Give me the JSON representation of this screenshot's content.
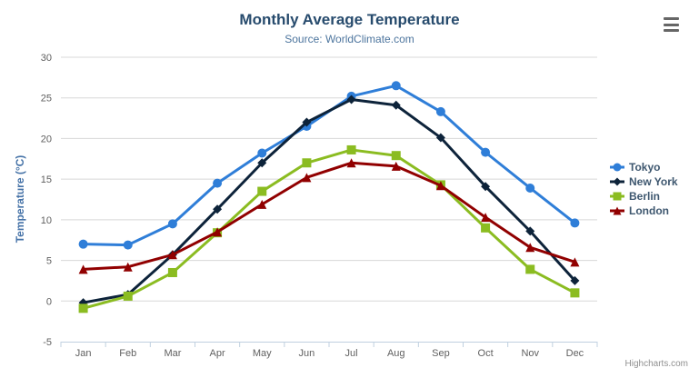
{
  "header": {
    "title": "Monthly Average Temperature",
    "subtitle": "Source: WorldClimate.com"
  },
  "credits": {
    "label": "Highcharts.com"
  },
  "palette": {
    "title_color": "#274b6d",
    "subtitle_color": "#4d759e",
    "yaxis_title_color": "#4572a7",
    "axis_label_color": "#606060",
    "grid_color": "#d8d8d8",
    "axis_line_color": "#c0d0e0",
    "legend_text_color": "#3e576f",
    "credits_color": "#909090",
    "hamburger_color": "#666666"
  },
  "chart_data": {
    "type": "line",
    "title": "Monthly Average Temperature",
    "subtitle": "Source: WorldClimate.com",
    "xlabel": "",
    "ylabel": "Temperature (°C)",
    "ylim": [
      -5,
      30
    ],
    "yticks": [
      -5,
      0,
      5,
      10,
      15,
      20,
      25,
      30
    ],
    "grid": true,
    "legend_position": "right",
    "categories": [
      "Jan",
      "Feb",
      "Mar",
      "Apr",
      "May",
      "Jun",
      "Jul",
      "Aug",
      "Sep",
      "Oct",
      "Nov",
      "Dec"
    ],
    "series": [
      {
        "name": "Tokyo",
        "color": "#2f7ed8",
        "marker": "circle",
        "values": [
          7.0,
          6.9,
          9.5,
          14.5,
          18.2,
          21.5,
          25.2,
          26.5,
          23.3,
          18.3,
          13.9,
          9.6
        ]
      },
      {
        "name": "New York",
        "color": "#0d233a",
        "marker": "diamond",
        "values": [
          -0.2,
          0.8,
          5.7,
          11.3,
          17.0,
          22.0,
          24.8,
          24.1,
          20.1,
          14.1,
          8.6,
          2.5
        ]
      },
      {
        "name": "Berlin",
        "color": "#8bbc21",
        "marker": "square",
        "values": [
          -0.9,
          0.6,
          3.5,
          8.4,
          13.5,
          17.0,
          18.6,
          17.9,
          14.3,
          9.0,
          3.9,
          1.0
        ]
      },
      {
        "name": "London",
        "color": "#910000",
        "marker": "triangle",
        "values": [
          3.9,
          4.2,
          5.7,
          8.5,
          11.9,
          15.2,
          17.0,
          16.6,
          14.2,
          10.3,
          6.6,
          4.8
        ]
      }
    ]
  }
}
